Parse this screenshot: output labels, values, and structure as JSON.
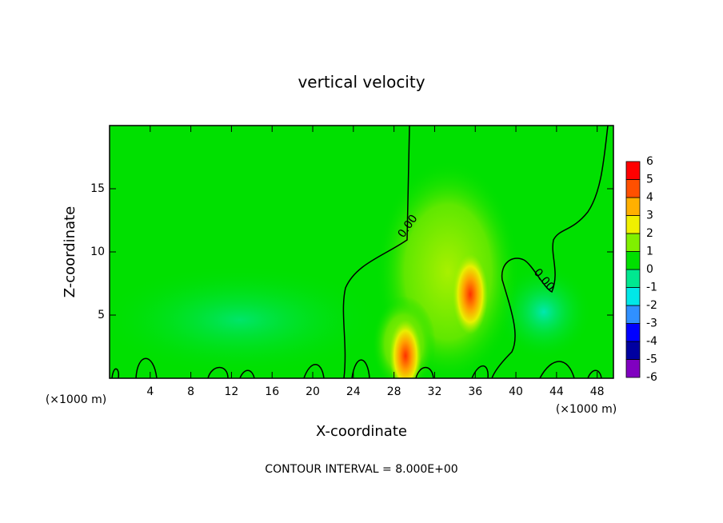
{
  "chart_data": {
    "type": "contour",
    "title": "vertical velocity",
    "x_label": "X-coordinate",
    "y_label": "Z-coordinate",
    "x_unit": "(×1000 m)",
    "y_unit": "(×1000 m)",
    "xlim": [
      0,
      49.6
    ],
    "ylim": [
      0,
      20
    ],
    "xticks": [
      4,
      8,
      12,
      16,
      20,
      24,
      28,
      32,
      36,
      40,
      44,
      48
    ],
    "yticks": [
      5,
      10,
      15
    ],
    "colorbar": {
      "levels": [
        -6,
        -5,
        -4,
        -3,
        -2,
        -1,
        0,
        1,
        2,
        3,
        4,
        5,
        6
      ],
      "colors": [
        "#8000c0",
        "#0000a0",
        "#0000ff",
        "#3090ff",
        "#00e8e8",
        "#00e890",
        "#00e000",
        "#80f000",
        "#f0f000",
        "#ffb000",
        "#ff5000",
        "#ff0000"
      ]
    },
    "contour_labels": [
      "0.00",
      "0.00"
    ],
    "footer": "CONTOUR INTERVAL = 8.000E+00"
  }
}
